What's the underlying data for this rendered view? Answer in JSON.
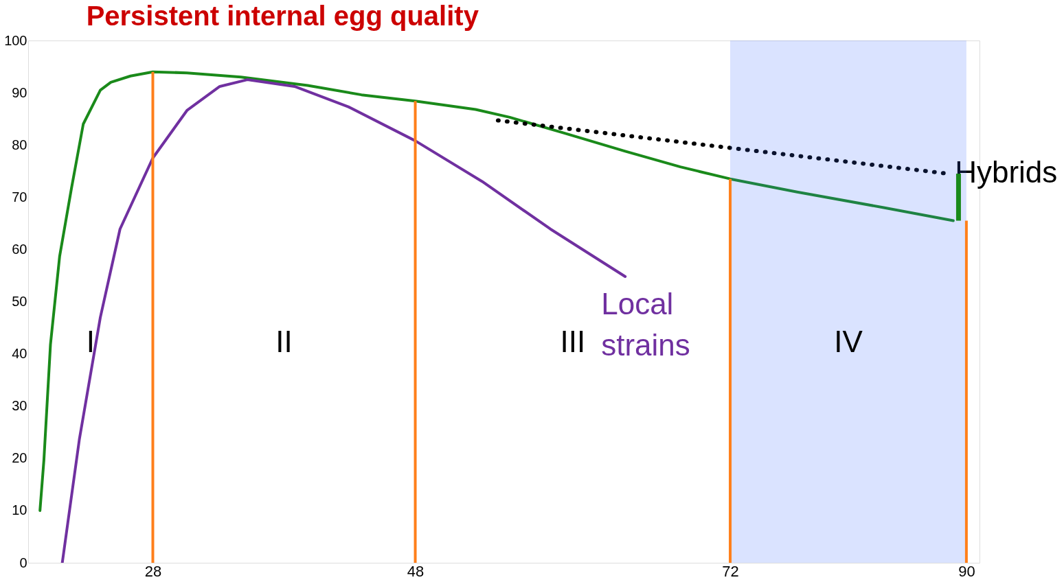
{
  "chart_data": {
    "type": "line",
    "title": "Persistent internal egg quality",
    "xlim": [
      18.5,
      91
    ],
    "xticks": [
      28,
      48,
      72,
      90
    ],
    "ylim": [
      0,
      100
    ],
    "yticks": [
      0,
      10,
      20,
      30,
      40,
      50,
      60,
      70,
      80,
      90,
      100
    ],
    "grid": false,
    "marker": "none",
    "series": [
      {
        "color": "#1a8a1a",
        "line_style": "solid",
        "x": [
          19.4,
          19.7,
          20.2,
          20.9,
          21.8,
          22.7,
          24,
          24.8,
          26.3,
          28,
          30.6,
          34.7,
          39.8,
          43.9,
          48,
          52.6,
          55.2,
          59.3,
          64,
          68.2,
          72,
          77.1,
          83.7,
          89
        ],
        "values": [
          10,
          19.7,
          41.8,
          58.7,
          71.7,
          84,
          90.5,
          92,
          93.2,
          94,
          93.8,
          93,
          91.4,
          89.6,
          88.4,
          86.8,
          85.3,
          82.3,
          78.8,
          75.8,
          73.5,
          71,
          68,
          65.5
        ]
      },
      {
        "name": "Local strains",
        "color": "#7030a0",
        "line_style": "solid",
        "x": [
          21.1,
          22.4,
          24,
          25.5,
          28,
          30.6,
          33.1,
          35.2,
          38.8,
          42.9,
          48,
          53.1,
          58.3,
          64
        ],
        "values": [
          0,
          23.6,
          47,
          63.9,
          77.5,
          86.6,
          91.2,
          92.5,
          91.2,
          87.3,
          80.8,
          73,
          63.9,
          54.8
        ]
      },
      {
        "name": "Hybrids",
        "color": "#000000",
        "line_style": "dotted",
        "x": [
          54.3,
          88.6
        ],
        "values": [
          84.7,
          74.5
        ]
      }
    ],
    "ref_lines": [
      {
        "axis": "x",
        "value": 28,
        "color": "#ff7f1a"
      },
      {
        "axis": "x",
        "value": 48,
        "color": "#ff7f1a"
      },
      {
        "axis": "x",
        "value": 72,
        "color": "#ff7f1a"
      },
      {
        "axis": "x",
        "value": 90,
        "color": "#ff7f1a"
      }
    ],
    "bands": [
      {
        "axis": "x",
        "from": 72,
        "to": 90,
        "color": "#3366ff"
      }
    ],
    "annotations": [
      "I",
      "II",
      "III",
      "IV"
    ]
  }
}
